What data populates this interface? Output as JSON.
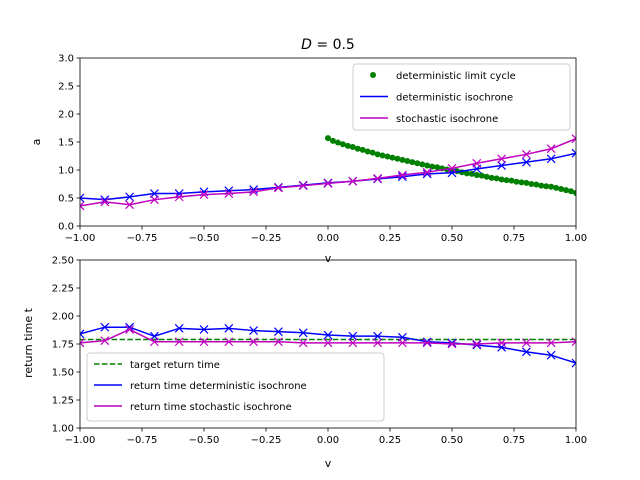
{
  "chart_data": [
    {
      "type": "line",
      "title": "D = 0.5",
      "title_parts": {
        "var": "D",
        "rest": " = 0.5"
      },
      "xlabel": "v",
      "ylabel": "a",
      "xlim": [
        -1.0,
        1.0
      ],
      "ylim": [
        0.0,
        3.0
      ],
      "xticks": [
        -1.0,
        -0.75,
        -0.5,
        -0.25,
        0.0,
        0.25,
        0.5,
        0.75,
        1.0
      ],
      "xtick_labels": [
        "−1.00",
        "−0.75",
        "−0.50",
        "−0.25",
        "0.00",
        "0.25",
        "0.50",
        "0.75",
        "1.00"
      ],
      "yticks": [
        0.0,
        0.5,
        1.0,
        1.5,
        2.0,
        2.5,
        3.0
      ],
      "ytick_labels": [
        "0.0",
        "0.5",
        "1.0",
        "1.5",
        "2.0",
        "2.5",
        "3.0"
      ],
      "grid": false,
      "legend_position": "top-right",
      "series": [
        {
          "name": "deterministic limit cycle",
          "kind": "points",
          "color": "#008000",
          "x": [
            0.0,
            0.02,
            0.04,
            0.06,
            0.08,
            0.1,
            0.12,
            0.14,
            0.16,
            0.18,
            0.2,
            0.22,
            0.24,
            0.26,
            0.28,
            0.3,
            0.32,
            0.34,
            0.36,
            0.38,
            0.4,
            0.42,
            0.44,
            0.46,
            0.48,
            0.5,
            0.52,
            0.54,
            0.56,
            0.58,
            0.6,
            0.62,
            0.64,
            0.66,
            0.68,
            0.7,
            0.72,
            0.74,
            0.76,
            0.78,
            0.8,
            0.82,
            0.84,
            0.86,
            0.88,
            0.9,
            0.92,
            0.94,
            0.96,
            0.98,
            1.0
          ],
          "y": [
            1.57,
            1.52,
            1.49,
            1.46,
            1.43,
            1.41,
            1.38,
            1.36,
            1.33,
            1.31,
            1.28,
            1.26,
            1.24,
            1.22,
            1.2,
            1.18,
            1.16,
            1.14,
            1.12,
            1.1,
            1.08,
            1.06,
            1.05,
            1.03,
            1.01,
            0.99,
            0.98,
            0.96,
            0.94,
            0.93,
            0.91,
            0.9,
            0.88,
            0.86,
            0.85,
            0.83,
            0.82,
            0.81,
            0.79,
            0.78,
            0.77,
            0.75,
            0.74,
            0.72,
            0.71,
            0.7,
            0.68,
            0.66,
            0.64,
            0.62,
            0.59
          ]
        },
        {
          "name": "deterministic isochrone",
          "kind": "line-x",
          "color": "#0000ff",
          "x": [
            -1.0,
            -0.9,
            -0.8,
            -0.7,
            -0.6,
            -0.5,
            -0.4,
            -0.3,
            -0.2,
            -0.1,
            0.0,
            0.1,
            0.2,
            0.3,
            0.4,
            0.5,
            0.6,
            0.7,
            0.8,
            0.9,
            1.0
          ],
          "y": [
            0.5,
            0.47,
            0.52,
            0.58,
            0.58,
            0.61,
            0.63,
            0.65,
            0.69,
            0.73,
            0.77,
            0.8,
            0.84,
            0.88,
            0.93,
            0.95,
            1.02,
            1.08,
            1.14,
            1.2,
            1.3
          ]
        },
        {
          "name": "stochastic isochrone",
          "kind": "line-x",
          "color": "#bf00bf",
          "x": [
            -1.0,
            -0.9,
            -0.8,
            -0.7,
            -0.6,
            -0.5,
            -0.4,
            -0.3,
            -0.2,
            -0.1,
            0.0,
            0.1,
            0.2,
            0.3,
            0.4,
            0.5,
            0.6,
            0.7,
            0.8,
            0.9,
            1.0
          ],
          "y": [
            0.36,
            0.43,
            0.38,
            0.47,
            0.52,
            0.56,
            0.58,
            0.61,
            0.68,
            0.72,
            0.76,
            0.8,
            0.85,
            0.91,
            0.96,
            1.03,
            1.12,
            1.2,
            1.28,
            1.38,
            1.56
          ]
        }
      ]
    },
    {
      "type": "line",
      "title": "",
      "xlabel": "v",
      "ylabel": "return time t",
      "xlim": [
        -1.0,
        1.0
      ],
      "ylim": [
        1.0,
        2.5
      ],
      "xticks": [
        -1.0,
        -0.75,
        -0.5,
        -0.25,
        0.0,
        0.25,
        0.5,
        0.75,
        1.0
      ],
      "xtick_labels": [
        "−1.00",
        "−0.75",
        "−0.50",
        "−0.25",
        "0.00",
        "0.25",
        "0.50",
        "0.75",
        "1.00"
      ],
      "yticks": [
        1.0,
        1.25,
        1.5,
        1.75,
        2.0,
        2.25,
        2.5
      ],
      "ytick_labels": [
        "1.00",
        "1.25",
        "1.50",
        "1.75",
        "2.00",
        "2.25",
        "2.50"
      ],
      "grid": false,
      "legend_position": "bottom-left",
      "series": [
        {
          "name": "target return time",
          "kind": "dashed",
          "color": "#008000",
          "x": [
            -1.0,
            1.0
          ],
          "y": [
            1.79,
            1.79
          ]
        },
        {
          "name": "return time deterministic isochrone",
          "kind": "line-x",
          "color": "#0000ff",
          "x": [
            -1.0,
            -0.9,
            -0.8,
            -0.7,
            -0.6,
            -0.5,
            -0.4,
            -0.3,
            -0.2,
            -0.1,
            0.0,
            0.1,
            0.2,
            0.3,
            0.4,
            0.5,
            0.6,
            0.7,
            0.8,
            0.9,
            1.0
          ],
          "y": [
            1.84,
            1.9,
            1.9,
            1.82,
            1.89,
            1.88,
            1.89,
            1.87,
            1.86,
            1.85,
            1.83,
            1.82,
            1.82,
            1.81,
            1.77,
            1.76,
            1.74,
            1.72,
            1.68,
            1.65,
            1.58
          ]
        },
        {
          "name": "return time stochastic isochrone",
          "kind": "line-x",
          "color": "#bf00bf",
          "x": [
            -1.0,
            -0.9,
            -0.8,
            -0.7,
            -0.6,
            -0.5,
            -0.4,
            -0.3,
            -0.2,
            -0.1,
            0.0,
            0.1,
            0.2,
            0.3,
            0.4,
            0.5,
            0.6,
            0.7,
            0.8,
            0.9,
            1.0
          ],
          "y": [
            1.76,
            1.78,
            1.88,
            1.77,
            1.77,
            1.77,
            1.77,
            1.77,
            1.77,
            1.76,
            1.76,
            1.76,
            1.76,
            1.76,
            1.76,
            1.75,
            1.75,
            1.76,
            1.76,
            1.76,
            1.77
          ]
        }
      ]
    }
  ]
}
